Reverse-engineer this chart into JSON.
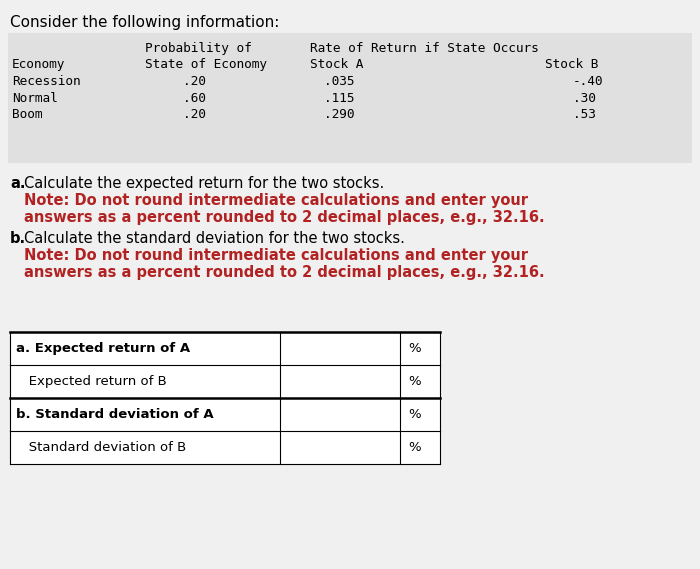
{
  "title": "Consider the following information:",
  "table_bg": "#e0e0e0",
  "white_bg": "#ffffff",
  "page_bg": "#f0f0f0",
  "mono_font": "monospace",
  "sans_font": "DejaVu Sans",
  "note_color": "#b22222",
  "header1": [
    "Probability of",
    "Rate of Return if State Occurs"
  ],
  "header2": [
    "Economy",
    "State of Economy",
    "Stock A",
    "Stock B"
  ],
  "table_data": [
    [
      "Recession",
      ".20",
      ".035",
      "-.40"
    ],
    [
      "Normal",
      ".60",
      ".115",
      ".30"
    ],
    [
      "Boom",
      ".20",
      ".290",
      ".53"
    ]
  ],
  "qa_text": "Calculate the expected return for the two stocks.",
  "qb_text": "Calculate the standard deviation for the two stocks.",
  "note_line1": "Note: Do not round intermediate calculations and enter your",
  "note_line2": "answers as a percent rounded to 2 decimal places, e.g., 32.16.",
  "answer_rows": [
    [
      "a. Expected return of A",
      true,
      "%"
    ],
    [
      "   Expected return of B",
      false,
      "%"
    ],
    [
      "b. Standard deviation of A",
      true,
      "%"
    ],
    [
      "   Standard deviation of B",
      false,
      "%"
    ]
  ]
}
